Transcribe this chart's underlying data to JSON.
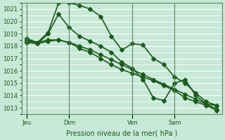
{
  "bg_color": "#c8e8d8",
  "grid_color": "#ffffff",
  "line_color": "#1a5c1a",
  "marker_color": "#1a5c1a",
  "title": "Pression niveau de la mer( hPa )",
  "ylim": [
    1012.5,
    1021.5
  ],
  "yticks": [
    1013,
    1014,
    1015,
    1016,
    1017,
    1018,
    1019,
    1020,
    1021
  ],
  "day_labels": [
    "Jeu",
    "Dim",
    "Ven",
    "Sam"
  ],
  "day_positions": [
    0,
    4,
    10,
    14
  ],
  "series1": [
    1018.5,
    1018.3,
    1019.1,
    1021.5,
    1021.5,
    1021.3,
    1021.0,
    1020.4,
    1018.8,
    1017.7,
    1018.2,
    1018.1,
    1017.0,
    1016.5,
    1015.5,
    1015.0,
    1014.2,
    1013.5,
    1013.2
  ],
  "series2": [
    1018.4,
    1018.2,
    1019.0,
    1020.6,
    1019.5,
    1018.8,
    1018.4,
    1018.0,
    1017.5,
    1016.7,
    1016.2,
    1015.3,
    1013.8,
    1013.6,
    1015.0,
    1015.3,
    1014.0,
    1013.3,
    1013.2
  ],
  "series3": [
    1018.6,
    1018.3,
    1018.5,
    1018.5,
    1018.3,
    1017.8,
    1017.5,
    1017.0,
    1016.5,
    1016.1,
    1015.8,
    1015.5,
    1015.2,
    1014.8,
    1014.4,
    1013.8,
    1013.5,
    1013.2,
    1012.8
  ],
  "series4": [
    1018.3,
    1018.2,
    1018.4,
    1018.5,
    1018.3,
    1018.0,
    1017.7,
    1017.3,
    1016.9,
    1016.5,
    1016.1,
    1015.7,
    1015.3,
    1014.9,
    1014.5,
    1014.1,
    1013.7,
    1013.3,
    1012.9
  ]
}
